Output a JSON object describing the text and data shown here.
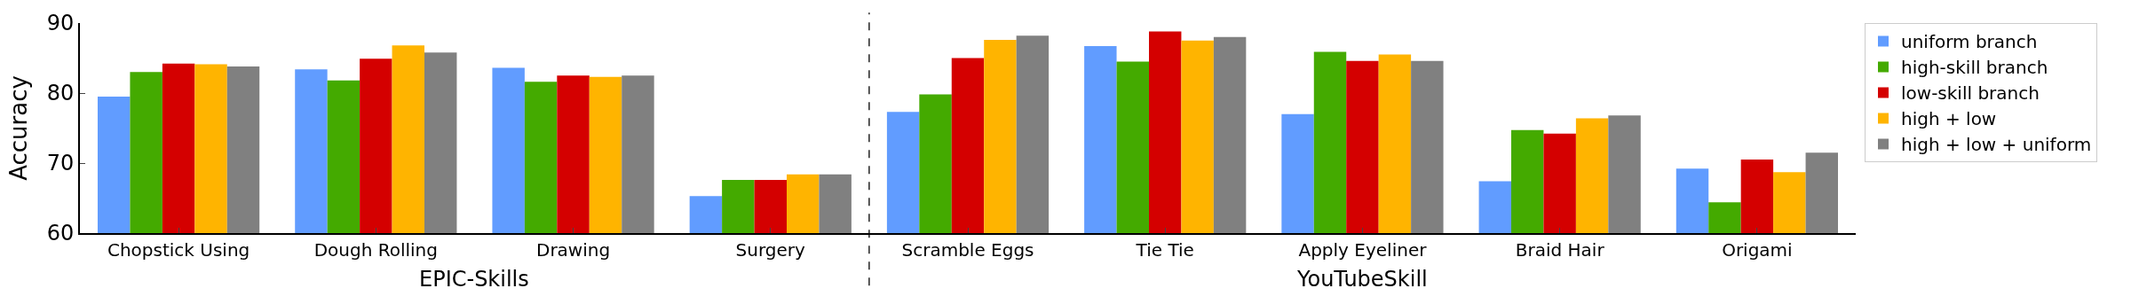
{
  "chart_data": {
    "type": "bar",
    "ylabel": "Accuracy",
    "categories": [
      "Chopstick Using",
      "Dough Rolling",
      "Drawing",
      "Surgery",
      "Scramble Eggs",
      "Tie Tie",
      "Apply Eyeliner",
      "Braid Hair",
      "Origami"
    ],
    "series": [
      {
        "name": "uniform branch",
        "color": "#619cff",
        "values": [
          79.5,
          83.4,
          83.6,
          65.3,
          77.3,
          86.7,
          77.0,
          67.4,
          69.2
        ]
      },
      {
        "name": "high-skill branch",
        "color": "#44aa00",
        "values": [
          83.0,
          81.8,
          81.6,
          67.6,
          79.8,
          84.5,
          85.9,
          74.7,
          64.4
        ]
      },
      {
        "name": "low-skill branch",
        "color": "#d40000",
        "values": [
          84.2,
          84.9,
          82.5,
          67.6,
          85.0,
          88.8,
          84.6,
          74.2,
          70.5
        ]
      },
      {
        "name": "high + low",
        "color": "#ffb400",
        "values": [
          84.1,
          86.8,
          82.3,
          68.4,
          87.6,
          87.5,
          85.5,
          76.4,
          68.7
        ]
      },
      {
        "name": "high + low + uniform",
        "color": "#808080",
        "values": [
          83.8,
          85.8,
          82.5,
          68.4,
          88.2,
          88.0,
          84.6,
          76.8,
          71.5
        ]
      }
    ],
    "ylim": [
      60,
      90
    ],
    "yticks": [
      60,
      70,
      80,
      90
    ],
    "legend": "top right",
    "annotations": [
      "EPIC-Skills",
      "YouTubeSkill"
    ]
  }
}
